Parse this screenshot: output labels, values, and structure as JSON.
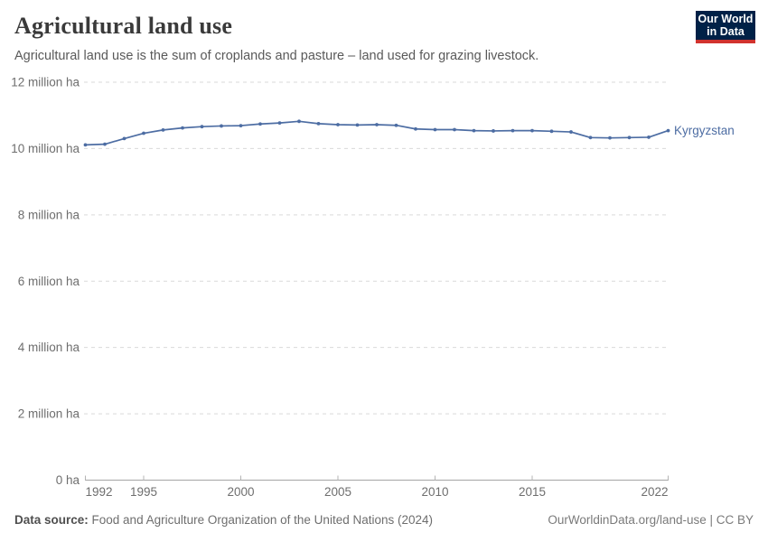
{
  "header": {
    "title": "Agricultural land use",
    "subtitle": "Agricultural land use is the sum of croplands and pasture – land used for grazing livestock.",
    "logo": {
      "line1": "Our World",
      "line2": "in Data"
    }
  },
  "footer": {
    "source_label": "Data source:",
    "source_text": " Food and Agriculture Organization of the United Nations (2024)",
    "credit": "OurWorldinData.org/land-use | CC BY"
  },
  "colors": {
    "line": "#4d6da3",
    "logo_bg": "#002147",
    "logo_stripe": "#d1332e",
    "gridline": "#d9d9d9",
    "axis_text": "#6e6e6e"
  },
  "chart_data": {
    "type": "line",
    "title": "Agricultural land use",
    "xlabel": "",
    "ylabel": "million ha",
    "unit": "million ha",
    "grid": "horizontal-dashed",
    "legend_position": "end-of-line-label",
    "x": [
      1992,
      1993,
      1994,
      1995,
      1996,
      1997,
      1998,
      1999,
      2000,
      2001,
      2002,
      2003,
      2004,
      2005,
      2006,
      2007,
      2008,
      2009,
      2010,
      2011,
      2012,
      2013,
      2014,
      2015,
      2016,
      2017,
      2018,
      2019,
      2020,
      2021,
      2022
    ],
    "series": [
      {
        "name": "Kyrgyzstan",
        "values_million_ha": [
          10.11,
          10.13,
          10.3,
          10.46,
          10.56,
          10.62,
          10.66,
          10.68,
          10.69,
          10.74,
          10.77,
          10.82,
          10.75,
          10.72,
          10.71,
          10.72,
          10.7,
          10.59,
          10.57,
          10.57,
          10.54,
          10.53,
          10.54,
          10.54,
          10.52,
          10.5,
          10.33,
          10.32,
          10.33,
          10.34,
          10.54
        ]
      }
    ],
    "xlim": [
      1992,
      2022
    ],
    "ylim_million_ha": [
      0,
      12
    ],
    "ytick_values_million_ha": [
      0,
      2,
      4,
      6,
      8,
      10,
      12
    ],
    "ytick_labels": [
      "0 ha",
      "2 million ha",
      "4 million ha",
      "6 million ha",
      "8 million ha",
      "10 million ha",
      "12 million ha"
    ],
    "xtick_values": [
      1992,
      1995,
      2000,
      2005,
      2010,
      2015,
      2022
    ],
    "xtick_labels": [
      "1992",
      "1995",
      "2000",
      "2005",
      "2010",
      "2015",
      "2022"
    ],
    "end_label": "Kyrgyzstan"
  }
}
